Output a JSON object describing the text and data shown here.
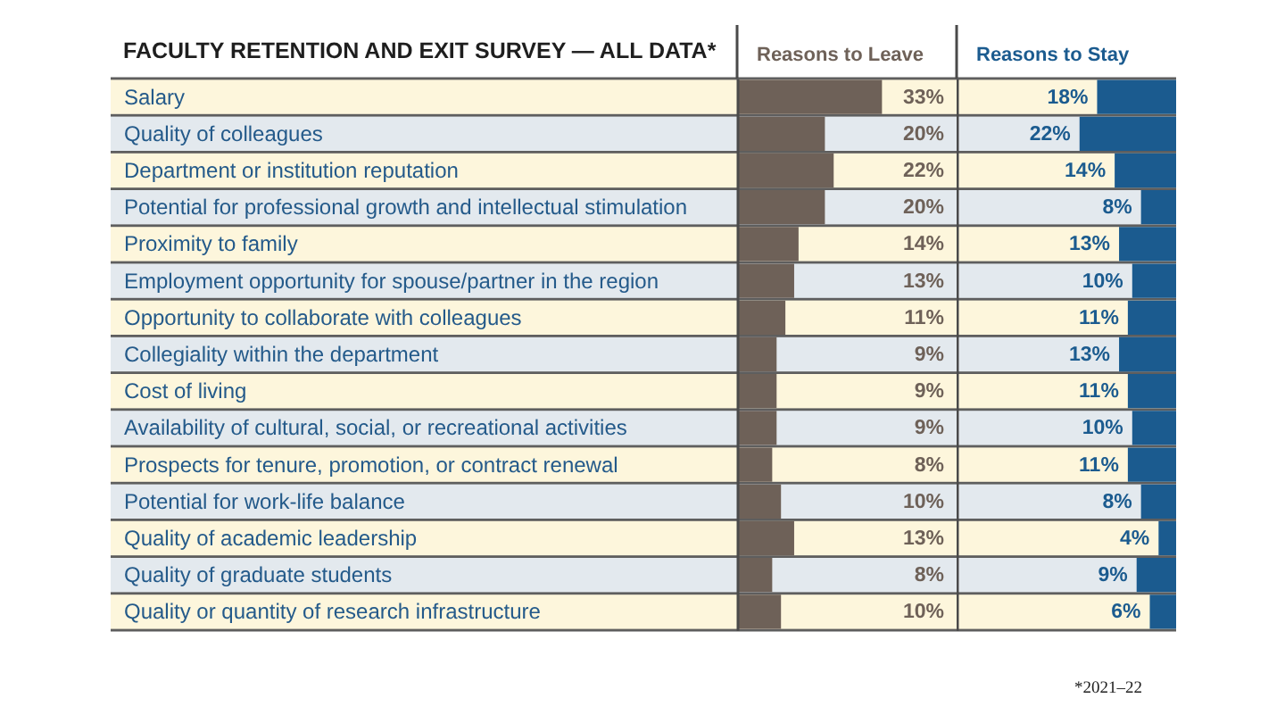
{
  "chart_data": [
    {
      "type": "bar",
      "title": "FACULTY RETENTION AND EXIT SURVEY — ALL DATA*",
      "orientation": "horizontal",
      "categories": [
        "Salary",
        "Quality of colleagues",
        "Department or institution reputation",
        "Potential for professional growth and intellectual stimulation",
        "Proximity to family",
        "Employment opportunity for spouse/partner in the region",
        "Opportunity to collaborate with colleagues",
        "Collegiality within the department",
        "Cost of living",
        "Availability of cultural, social, or recreational activities",
        "Prospects for tenure, promotion, or contract renewal",
        "Potential for work-life balance",
        "Quality of academic leadership",
        "Quality of graduate students",
        "Quality or quantity of research infrastructure"
      ],
      "series": [
        {
          "name": "Reasons to Leave",
          "color": "#6e6158",
          "values": [
            33,
            20,
            22,
            20,
            14,
            13,
            11,
            9,
            9,
            9,
            8,
            10,
            13,
            8,
            10
          ],
          "value_labels": [
            "33%",
            "20%",
            "22%",
            "20%",
            "14%",
            "13%",
            "11%",
            "9%",
            "9%",
            "9%",
            "8%",
            "10%",
            "13%",
            "8%",
            "10%"
          ]
        }
      ],
      "xlim": [
        0,
        50
      ],
      "tick_labels": "y"
    },
    {
      "type": "bar",
      "orientation": "horizontal",
      "categories": [
        null,
        null,
        null,
        null,
        null,
        null,
        null,
        null,
        null,
        null,
        null,
        null,
        null,
        null,
        null
      ],
      "series": [
        {
          "name": "Reasons to Stay",
          "color": "#1b5b8f",
          "values": [
            18,
            22,
            14,
            8,
            13,
            10,
            11,
            13,
            11,
            10,
            11,
            8,
            4,
            9,
            6
          ],
          "value_labels": [
            "18%",
            "22%",
            "14%",
            "8%",
            "13%",
            "10%",
            "11%",
            "13%",
            "11%",
            "10%",
            "11%",
            "8%",
            "4%",
            "9%",
            "6%"
          ]
        }
      ],
      "xlim": [
        50,
        0
      ],
      "annotations": [
        "*2021–22"
      ]
    }
  ]
}
